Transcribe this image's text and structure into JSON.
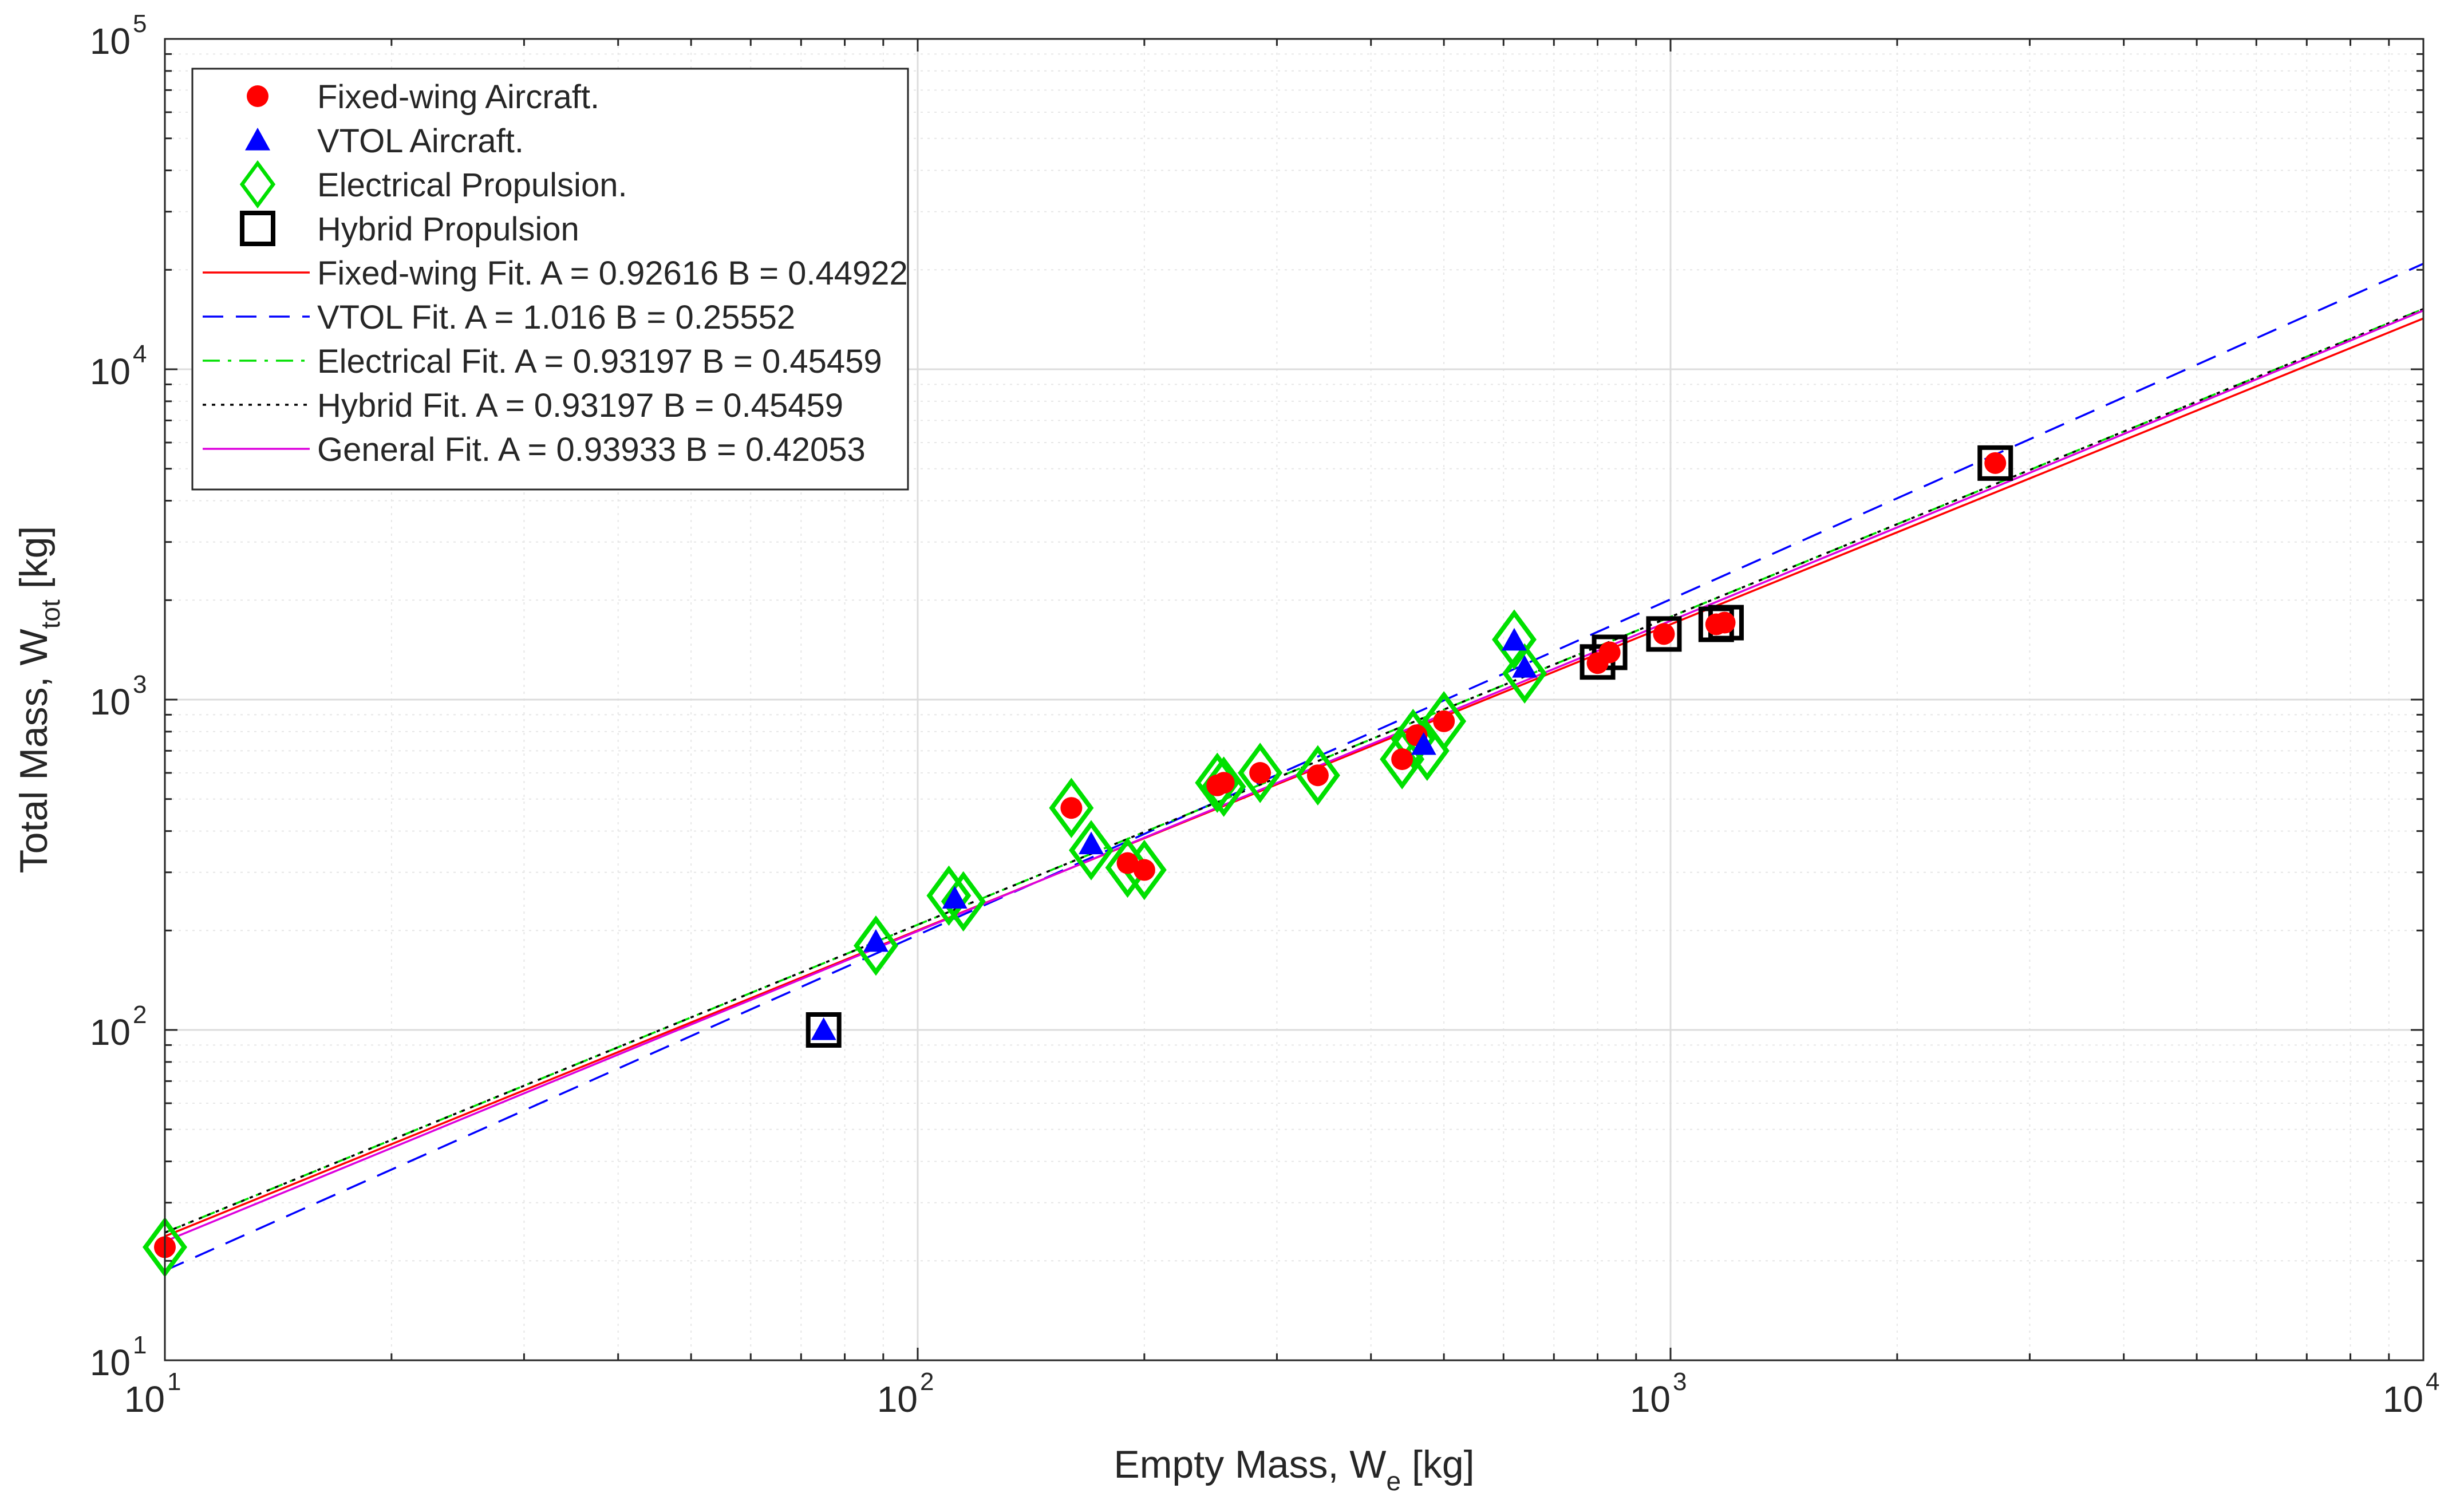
{
  "chart_data": {
    "type": "scatter",
    "xscale": "log",
    "yscale": "log",
    "xlim": [
      10,
      10000
    ],
    "ylim": [
      10,
      100000
    ],
    "grid": true,
    "minor_grid": true,
    "legend_position": "top-left",
    "xlabel": {
      "main": "Empty Mass, W",
      "sub": "e",
      "unit": " [kg]"
    },
    "ylabel": {
      "main": "Total Mass, W",
      "sub": "tot",
      "unit": " [kg]"
    },
    "xticks": [
      {
        "base": "10",
        "exp": "1",
        "value": 10
      },
      {
        "base": "10",
        "exp": "2",
        "value": 100
      },
      {
        "base": "10",
        "exp": "3",
        "value": 1000
      },
      {
        "base": "10",
        "exp": "4",
        "value": 10000
      }
    ],
    "yticks": [
      {
        "base": "10",
        "exp": "1",
        "value": 10
      },
      {
        "base": "10",
        "exp": "2",
        "value": 100
      },
      {
        "base": "10",
        "exp": "3",
        "value": 1000
      },
      {
        "base": "10",
        "exp": "4",
        "value": 10000
      },
      {
        "base": "10",
        "exp": "5",
        "value": 100000
      }
    ],
    "scatter_series": [
      {
        "name": "Fixed-wing Aircraft.",
        "marker": "circle",
        "color": "#ff0000",
        "points": [
          [
            10,
            22
          ],
          [
            160,
            470
          ],
          [
            190,
            320
          ],
          [
            200,
            305
          ],
          [
            250,
            550
          ],
          [
            255,
            560
          ],
          [
            285,
            600
          ],
          [
            340,
            590
          ],
          [
            440,
            660
          ],
          [
            460,
            780
          ],
          [
            500,
            860
          ],
          [
            800,
            1290
          ],
          [
            830,
            1390
          ],
          [
            980,
            1580
          ],
          [
            1150,
            1690
          ],
          [
            1180,
            1710
          ],
          [
            2700,
            5200
          ]
        ]
      },
      {
        "name": "VTOL Aircraft.",
        "marker": "triangle",
        "color": "#0000ff",
        "points": [
          [
            75,
            100
          ],
          [
            88,
            185
          ],
          [
            112,
            250
          ],
          [
            170,
            365
          ],
          [
            470,
            730
          ],
          [
            620,
            1510
          ],
          [
            640,
            1250
          ]
        ]
      },
      {
        "name": "Electrical Propulsion.",
        "marker": "diamond",
        "color": "#00e000",
        "points": [
          [
            10,
            22
          ],
          [
            88,
            180
          ],
          [
            110,
            255
          ],
          [
            115,
            245
          ],
          [
            160,
            470
          ],
          [
            170,
            350
          ],
          [
            190,
            310
          ],
          [
            200,
            305
          ],
          [
            250,
            560
          ],
          [
            255,
            545
          ],
          [
            285,
            600
          ],
          [
            340,
            590
          ],
          [
            440,
            660
          ],
          [
            455,
            760
          ],
          [
            475,
            700
          ],
          [
            500,
            860
          ],
          [
            620,
            1520
          ],
          [
            640,
            1200
          ]
        ]
      },
      {
        "name": "Hybrid Propulsion",
        "marker": "square",
        "color": "#000000",
        "points": [
          [
            75,
            100
          ],
          [
            800,
            1300
          ],
          [
            830,
            1390
          ],
          [
            980,
            1580
          ],
          [
            1150,
            1690
          ],
          [
            1185,
            1710
          ],
          [
            2700,
            5200
          ]
        ]
      }
    ],
    "fit_series": [
      {
        "name": "Fixed-wing Fit. A = 0.92616 B = 0.44922",
        "A": 0.92616,
        "B": 0.44922,
        "color": "#ff0000",
        "dash": "solid"
      },
      {
        "name": "VTOL Fit. A = 1.016 B = 0.25552",
        "A": 1.016,
        "B": 0.25552,
        "color": "#0000ff",
        "dash": "dashed"
      },
      {
        "name": "Electrical Fit. A = 0.93197 B = 0.45459",
        "A": 0.93197,
        "B": 0.45459,
        "color": "#00e000",
        "dash": "dashdot"
      },
      {
        "name": "Hybrid Fit. A = 0.93197 B = 0.45459",
        "A": 0.93197,
        "B": 0.45459,
        "color": "#000000",
        "dash": "dotted"
      },
      {
        "name": "General Fit. A = 0.93933 B = 0.42053",
        "A": 0.93933,
        "B": 0.42053,
        "color": "#dd00dd",
        "dash": "solid"
      }
    ]
  }
}
